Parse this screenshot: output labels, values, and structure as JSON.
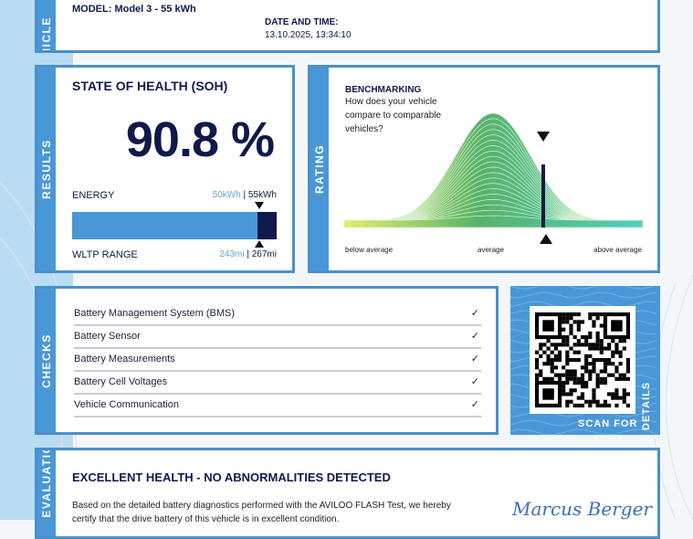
{
  "vehicle": {
    "tab": "VEHICLE",
    "model": "MODEL: Model 3 - 55 kWh",
    "date_label": "DATE AND TIME:",
    "date_value": "13.10.2025, 13:34:10"
  },
  "results": {
    "tab": "RESULTS",
    "title": "STATE OF HEALTH (SOH)",
    "soh": "90.8 %",
    "soh_percent": 90.8,
    "energy_label": "ENERGY",
    "energy_current": "50kWh",
    "energy_sep": " | ",
    "energy_nominal": "55kWh",
    "range_label": "WLTP RANGE",
    "range_current": "243mi",
    "range_sep": " | ",
    "range_nominal": "267mi"
  },
  "rating": {
    "tab": "RATING",
    "title": "BENCHMARKING",
    "question_1": "How does your vehicle",
    "question_2": "compare to comparable",
    "question_3": "vehicles?",
    "below": "below average",
    "average": "average",
    "above": "above average"
  },
  "checks": {
    "tab": "CHECKS",
    "items": [
      {
        "label": "Battery Management System (BMS)",
        "status": "✓"
      },
      {
        "label": "Battery Sensor",
        "status": "✓"
      },
      {
        "label": "Battery Measurements",
        "status": "✓"
      },
      {
        "label": "Battery Cell Voltages",
        "status": "✓"
      },
      {
        "label": "Vehicle Communication",
        "status": "✓"
      }
    ]
  },
  "qr": {
    "label": "SCAN FOR",
    "label2": "DETAILS"
  },
  "evaluation": {
    "tab": "EVALUATION",
    "title": "EXCELLENT HEALTH - NO ABNORMALITIES DETECTED",
    "text_1": "Based on the detailed battery diagnostics performed with the AVILOO FLASH Test, we hereby",
    "text_2": "certify that the drive battery of this vehicle is in excellent condition.",
    "signature": "Marcus Berger"
  },
  "colors": {
    "accent": "#4a97d8",
    "navy": "#0f1a4a",
    "light_blue": "#b9dcf2"
  }
}
